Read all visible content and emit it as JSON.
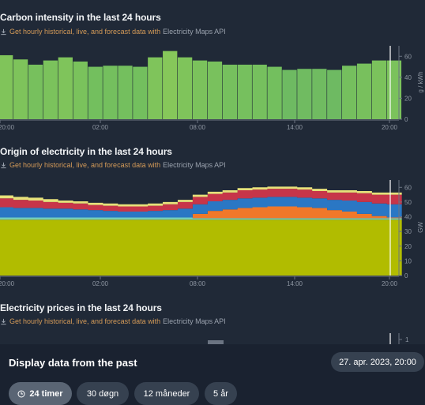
{
  "carbon": {
    "title": "Carbon intensity in the last 24 hours",
    "link_text": "Get hourly historical, live, and forecast data with",
    "link_api": "Electricity Maps API"
  },
  "origin": {
    "title": "Origin of electricity in the last 24 hours",
    "link_text": "Get hourly historical, live, and forecast data with",
    "link_api": "Electricity Maps API"
  },
  "prices": {
    "title": "Electricity prices in the last 24 hours",
    "link_text": "Get hourly historical, live, and forecast data with",
    "link_api": "Electricity Maps API"
  },
  "footer": {
    "title": "Display data from the past",
    "date": "27. apr. 2023, 20:00",
    "ranges": [
      {
        "label": "24 timer",
        "active": true
      },
      {
        "label": "30 døgn",
        "active": false
      },
      {
        "label": "12 måneder",
        "active": false
      },
      {
        "label": "5 år",
        "active": false
      }
    ]
  },
  "colors": {
    "background": "#202937",
    "carbon_green_light": "#80c45a",
    "carbon_green_dark": "#6ab964",
    "nuclear": "#b1bc00",
    "hydro": "#2a77c4",
    "gas": "#c73549",
    "solar": "#f0782a",
    "wind": "#74cdb9",
    "unknown": "#e7e17a",
    "link": "#d39a58"
  },
  "chart_data": [
    {
      "type": "bar",
      "ylabel": "g / kWh",
      "ylim": [
        0,
        70
      ],
      "yticks": [
        0,
        20,
        40,
        60
      ],
      "xticks": [
        "20:00",
        "02:00",
        "08:00",
        "14:00",
        "20:00"
      ],
      "values": [
        61,
        57,
        52,
        56,
        59,
        55,
        50,
        51,
        51,
        50,
        59,
        65,
        59,
        56,
        55,
        52,
        52,
        52,
        50,
        47,
        48,
        48,
        47,
        51,
        53,
        56,
        56
      ],
      "colors": [
        "#80c45a",
        "#7ec35b",
        "#77c05d",
        "#7bc25c",
        "#7fc45b",
        "#7ac25c",
        "#73bf5e",
        "#74bf5e",
        "#74bf5e",
        "#73bf5e",
        "#7fc45b",
        "#86c75a",
        "#7fc45b",
        "#7bc25c",
        "#79c15d",
        "#76c05e",
        "#76c05e",
        "#76c05e",
        "#73bf5e",
        "#6eba62",
        "#70bb61",
        "#70bb61",
        "#6eba62",
        "#75bf5e",
        "#78c05d",
        "#7bc25c",
        "#7bc25c"
      ]
    },
    {
      "type": "area",
      "ylabel": "GW",
      "ylim": [
        0,
        65
      ],
      "yticks": [
        0,
        10,
        20,
        30,
        40,
        50,
        60
      ],
      "xticks": [
        "20:00",
        "02:00",
        "08:00",
        "14:00",
        "20:00"
      ],
      "stack_order": [
        "nuclear",
        "wind",
        "solar",
        "hydro",
        "gas",
        "unknown"
      ],
      "series": [
        {
          "key": "nuclear",
          "values": [
            38,
            38,
            38,
            38,
            38,
            38,
            38,
            38,
            38,
            38,
            38,
            38,
            38,
            38,
            38,
            38,
            38,
            38,
            38,
            38,
            38,
            38,
            38,
            38,
            38,
            38,
            38
          ]
        },
        {
          "key": "wind",
          "values": [
            1.5,
            1.5,
            1.5,
            1.5,
            1.5,
            1.5,
            1.5,
            1.5,
            1.5,
            1.5,
            1.5,
            1.5,
            1.5,
            1.0,
            1.0,
            1.0,
            1.0,
            1.0,
            1.0,
            1.0,
            1.0,
            1.0,
            1.0,
            1.0,
            1.0,
            1.0,
            1.0
          ]
        },
        {
          "key": "solar",
          "values": [
            0,
            0,
            0,
            0,
            0,
            0,
            0,
            0,
            0,
            0,
            0,
            0,
            0,
            3.0,
            5.0,
            6.0,
            7.0,
            7.5,
            8.0,
            8.0,
            7.5,
            7.0,
            5.5,
            4.5,
            3.0,
            1.5,
            0.5
          ]
        },
        {
          "key": "hydro",
          "values": [
            7.0,
            6.5,
            6.5,
            6.0,
            6.0,
            5.5,
            5.0,
            4.5,
            4.0,
            4.0,
            4.5,
            5.0,
            6.0,
            6.5,
            6.5,
            6.5,
            6.5,
            6.5,
            6.5,
            6.5,
            6.5,
            6.5,
            7.0,
            7.5,
            8.0,
            8.5,
            9.0
          ]
        },
        {
          "key": "gas",
          "values": [
            6.0,
            5.5,
            5.0,
            4.5,
            4.0,
            4.0,
            3.5,
            3.5,
            3.5,
            3.5,
            3.5,
            4.0,
            4.5,
            5.0,
            5.0,
            5.0,
            5.5,
            5.5,
            5.5,
            5.5,
            5.5,
            5.0,
            5.0,
            5.5,
            6.0,
            6.0,
            6.5
          ]
        },
        {
          "key": "unknown",
          "values": [
            2.0,
            2.0,
            2.0,
            2.0,
            1.5,
            1.5,
            1.5,
            1.5,
            1.5,
            1.5,
            1.5,
            1.5,
            1.5,
            1.5,
            1.5,
            1.5,
            1.5,
            1.5,
            1.5,
            1.5,
            1.5,
            1.5,
            1.5,
            1.5,
            1.5,
            1.5,
            1.5
          ]
        }
      ]
    },
    {
      "type": "bar",
      "yticks": [
        1
      ],
      "values": []
    }
  ]
}
